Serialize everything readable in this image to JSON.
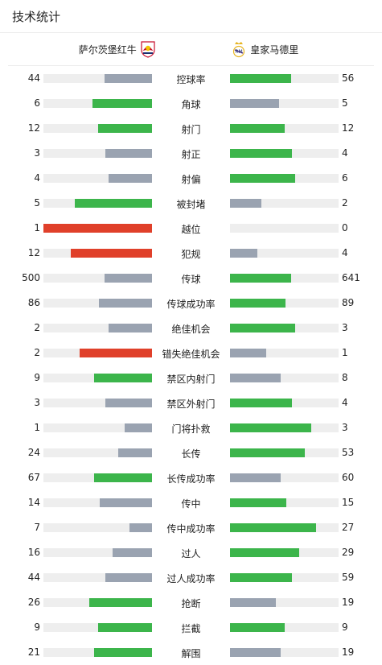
{
  "header": {
    "title": "技术统计"
  },
  "teams": {
    "home": {
      "name": "萨尔茨堡红牛"
    },
    "away": {
      "name": "皇家马德里"
    }
  },
  "colors": {
    "better": "#3cb54b",
    "worse": "#9aa3b1",
    "negative": "#e0402a",
    "track": "#eeeeee"
  },
  "stats": [
    {
      "label": "控球率",
      "home": "44",
      "away": "56",
      "home_frac": 0.44,
      "away_frac": 0.56,
      "home_color": "worse",
      "away_color": "better"
    },
    {
      "label": "角球",
      "home": "6",
      "away": "5",
      "home_frac": 0.55,
      "away_frac": 0.45,
      "home_color": "better",
      "away_color": "worse"
    },
    {
      "label": "射门",
      "home": "12",
      "away": "12",
      "home_frac": 0.5,
      "away_frac": 0.5,
      "home_color": "better",
      "away_color": "better"
    },
    {
      "label": "射正",
      "home": "3",
      "away": "4",
      "home_frac": 0.43,
      "away_frac": 0.57,
      "home_color": "worse",
      "away_color": "better"
    },
    {
      "label": "射偏",
      "home": "4",
      "away": "6",
      "home_frac": 0.4,
      "away_frac": 0.6,
      "home_color": "worse",
      "away_color": "better"
    },
    {
      "label": "被封堵",
      "home": "5",
      "away": "2",
      "home_frac": 0.71,
      "away_frac": 0.29,
      "home_color": "better",
      "away_color": "worse"
    },
    {
      "label": "越位",
      "home": "1",
      "away": "0",
      "home_frac": 1.0,
      "away_frac": 0.0,
      "home_color": "negative",
      "away_color": "worse"
    },
    {
      "label": "犯规",
      "home": "12",
      "away": "4",
      "home_frac": 0.75,
      "away_frac": 0.25,
      "home_color": "negative",
      "away_color": "worse"
    },
    {
      "label": "传球",
      "home": "500",
      "away": "641",
      "home_frac": 0.44,
      "away_frac": 0.56,
      "home_color": "worse",
      "away_color": "better"
    },
    {
      "label": "传球成功率",
      "home": "86",
      "away": "89",
      "home_frac": 0.49,
      "away_frac": 0.51,
      "home_color": "worse",
      "away_color": "better"
    },
    {
      "label": "绝佳机会",
      "home": "2",
      "away": "3",
      "home_frac": 0.4,
      "away_frac": 0.6,
      "home_color": "worse",
      "away_color": "better"
    },
    {
      "label": "错失绝佳机会",
      "home": "2",
      "away": "1",
      "home_frac": 0.67,
      "away_frac": 0.33,
      "home_color": "negative",
      "away_color": "worse"
    },
    {
      "label": "禁区内射门",
      "home": "9",
      "away": "8",
      "home_frac": 0.53,
      "away_frac": 0.47,
      "home_color": "better",
      "away_color": "worse"
    },
    {
      "label": "禁区外射门",
      "home": "3",
      "away": "4",
      "home_frac": 0.43,
      "away_frac": 0.57,
      "home_color": "worse",
      "away_color": "better"
    },
    {
      "label": "门将扑救",
      "home": "1",
      "away": "3",
      "home_frac": 0.25,
      "away_frac": 0.75,
      "home_color": "worse",
      "away_color": "better"
    },
    {
      "label": "长传",
      "home": "24",
      "away": "53",
      "home_frac": 0.31,
      "away_frac": 0.69,
      "home_color": "worse",
      "away_color": "better"
    },
    {
      "label": "长传成功率",
      "home": "67",
      "away": "60",
      "home_frac": 0.53,
      "away_frac": 0.47,
      "home_color": "better",
      "away_color": "worse"
    },
    {
      "label": "传中",
      "home": "14",
      "away": "15",
      "home_frac": 0.48,
      "away_frac": 0.52,
      "home_color": "worse",
      "away_color": "better"
    },
    {
      "label": "传中成功率",
      "home": "7",
      "away": "27",
      "home_frac": 0.21,
      "away_frac": 0.79,
      "home_color": "worse",
      "away_color": "better"
    },
    {
      "label": "过人",
      "home": "16",
      "away": "29",
      "home_frac": 0.36,
      "away_frac": 0.64,
      "home_color": "worse",
      "away_color": "better"
    },
    {
      "label": "过人成功率",
      "home": "44",
      "away": "59",
      "home_frac": 0.43,
      "away_frac": 0.57,
      "home_color": "worse",
      "away_color": "better"
    },
    {
      "label": "抢断",
      "home": "26",
      "away": "19",
      "home_frac": 0.58,
      "away_frac": 0.42,
      "home_color": "better",
      "away_color": "worse"
    },
    {
      "label": "拦截",
      "home": "9",
      "away": "9",
      "home_frac": 0.5,
      "away_frac": 0.5,
      "home_color": "better",
      "away_color": "better"
    },
    {
      "label": "解围",
      "home": "21",
      "away": "19",
      "home_frac": 0.53,
      "away_frac": 0.47,
      "home_color": "better",
      "away_color": "worse"
    }
  ]
}
